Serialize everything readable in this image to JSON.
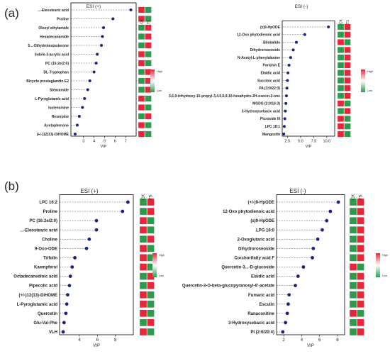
{
  "panel_labels": [
    "(a)",
    "(b)"
  ],
  "colors": {
    "dot": "#1a237e",
    "high": "#e8263a",
    "low": "#2e9a4e",
    "legend_high": "#e8263a",
    "legend_low": "#2e9a4e",
    "frame": "#000000",
    "leader": "#555555"
  },
  "legend_text": {
    "high": "High",
    "low": "Low"
  },
  "chart_data": [
    {
      "type": "scatter",
      "panel": "(a)",
      "title": "ESI (+)",
      "xlabel": "VIP",
      "xlim": [
        1.8,
        8.0
      ],
      "xticks": [
        3,
        4,
        5,
        6,
        7
      ],
      "tile_headers": [
        "CK",
        "T1"
      ],
      "categories": [
        "...-Eleostearic acid",
        "Proline",
        "Oleoyl ethylamide",
        "Hexadecanamide",
        "5...-Dihydrotestosterone",
        "Indole-3-acrylic acid",
        "PC (16:2e/2:0)",
        "DL-Tryptophan",
        "Bicyclo prostaglandin E2",
        "Stearamide",
        "L-Pyroglutamic acid",
        "Isolensinine",
        "Reserpine",
        "Acetophenone",
        "(+/-)12(13)-DiHOME"
      ],
      "values": [
        7.5,
        5.8,
        4.9,
        4.8,
        4.7,
        4.3,
        4.2,
        4.0,
        3.6,
        3.4,
        3.1,
        2.9,
        2.6,
        2.4,
        2.2
      ],
      "tiles": [
        [
          "high",
          "low"
        ],
        [
          "high",
          "low"
        ],
        [
          "low",
          "high"
        ],
        [
          "low",
          "high"
        ],
        [
          "low",
          "high"
        ],
        [
          "high",
          "low"
        ],
        [
          "high",
          "low"
        ],
        [
          "low",
          "high"
        ],
        [
          "low",
          "high"
        ],
        [
          "low",
          "high"
        ],
        [
          "high",
          "low"
        ],
        [
          "high",
          "low"
        ],
        [
          "low",
          "high"
        ],
        [
          "high",
          "low"
        ],
        [
          "high",
          "low"
        ]
      ]
    },
    {
      "type": "scatter",
      "panel": "(a)",
      "title": "ESI (-)",
      "xlabel": "VIP",
      "xlim": [
        1.5,
        11.5
      ],
      "xticks": [
        2.5,
        5.0,
        7.5,
        10.0
      ],
      "tick_labels": [
        "2.5",
        "5.0",
        "7.5",
        "10.0"
      ],
      "tile_headers": [
        "CK",
        "T1"
      ],
      "categories": [
        "(±)9-HpODE",
        "12-Oxo phytodienoic acid",
        "Bilobalide",
        "Dihydroroseoside",
        "N-Acetyl-L-phenylalanine",
        "Parishin E",
        "Elaidic acid",
        "Succinic acid",
        "PA (3:0/22:3)",
        "3,6,9-trihydroxy-10-propyl-3,4,5,6,9,10-hexahydro-2H-oxecin-2-one",
        "MGDG (2:0/16:3)",
        "3-Hydroxysebacic acid",
        "Picroside III",
        "LPC 18:1",
        "Mangostin"
      ],
      "values": [
        10.3,
        5.8,
        4.2,
        3.6,
        3.1,
        2.8,
        2.6,
        2.5,
        2.4,
        2.3,
        2.2,
        2.1,
        2.0,
        1.9,
        1.8
      ],
      "tiles": [
        [
          "low",
          "high"
        ],
        [
          "low",
          "high"
        ],
        [
          "high",
          "low"
        ],
        [
          "low",
          "high"
        ],
        [
          "low",
          "high"
        ],
        [
          "low",
          "high"
        ],
        [
          "low",
          "high"
        ],
        [
          "low",
          "high"
        ],
        [
          "low",
          "high"
        ],
        [
          "low",
          "high"
        ],
        [
          "high",
          "low"
        ],
        [
          "low",
          "high"
        ],
        [
          "high",
          "low"
        ],
        [
          "high",
          "low"
        ],
        [
          "high",
          "low"
        ]
      ]
    },
    {
      "type": "scatter",
      "panel": "(b)",
      "title": "ESI (+)",
      "xlabel": "VIP",
      "xlim": [
        1.8,
        10.0
      ],
      "xticks": [
        4,
        6,
        8
      ],
      "tile_headers": [
        "CK",
        "T5"
      ],
      "categories": [
        "LPC 16:2",
        "Proline",
        "PC (16:2e/2:0)",
        "...-Eleostearic acid",
        "Choline",
        "9-Oxo-ODE",
        "Trifolin",
        "Kaempferol",
        "Octadecanedioic acid",
        "Pipecolic acid",
        "(+/-)12(13)-DiHOME",
        "L-Pyroglutamic acid",
        "Quercetin",
        "Glu-Val-Phe",
        "VLH"
      ],
      "values": [
        9.4,
        8.8,
        5.9,
        5.9,
        5.1,
        4.8,
        3.5,
        3.2,
        3.0,
        2.9,
        2.7,
        2.6,
        2.5,
        2.3,
        2.2
      ],
      "tiles": [
        [
          "low",
          "high"
        ],
        [
          "low",
          "high"
        ],
        [
          "high",
          "low"
        ],
        [
          "high",
          "low"
        ],
        [
          "low",
          "high"
        ],
        [
          "high",
          "low"
        ],
        [
          "high",
          "low"
        ],
        [
          "high",
          "low"
        ],
        [
          "low",
          "high"
        ],
        [
          "low",
          "high"
        ],
        [
          "high",
          "low"
        ],
        [
          "high",
          "low"
        ],
        [
          "high",
          "low"
        ],
        [
          "low",
          "high"
        ],
        [
          "high",
          "low"
        ]
      ]
    },
    {
      "type": "scatter",
      "panel": "(b)",
      "title": "ESI (-)",
      "xlabel": "VIP",
      "xlim": [
        1.2,
        8.8
      ],
      "xticks": [
        2,
        4,
        6,
        8
      ],
      "tile_headers": [
        "CK",
        "T5"
      ],
      "categories": [
        "(+/-)9-HpODE",
        "12-Oxo phytodienoic acid",
        "(±)9-HpODE",
        "LPG 16:0",
        "2-Oxoglutaric acid",
        "Dihydroroseoside",
        "Corchorifatty acid F",
        "Quercetin-3...-D-glucoside",
        "Elaidic acid",
        "Quercetin-3-O-beta-glucopyranosyl-6'-acetate",
        "Fumaric acid",
        "Esculin",
        "Ranaconitine",
        "3-Hydroxysebacic acid",
        "PI (2:0/20:4)"
      ],
      "values": [
        8.1,
        7.2,
        6.8,
        6.3,
        5.8,
        5.3,
        5.2,
        4.2,
        3.6,
        3.3,
        2.6,
        2.5,
        2.4,
        2.2,
        1.9
      ],
      "tiles": [
        [
          "low",
          "high"
        ],
        [
          "low",
          "high"
        ],
        [
          "low",
          "high"
        ],
        [
          "low",
          "high"
        ],
        [
          "low",
          "high"
        ],
        [
          "low",
          "high"
        ],
        [
          "low",
          "high"
        ],
        [
          "high",
          "low"
        ],
        [
          "low",
          "high"
        ],
        [
          "low",
          "high"
        ],
        [
          "low",
          "high"
        ],
        [
          "low",
          "high"
        ],
        [
          "high",
          "low"
        ],
        [
          "low",
          "high"
        ],
        [
          "low",
          "high"
        ]
      ]
    }
  ]
}
